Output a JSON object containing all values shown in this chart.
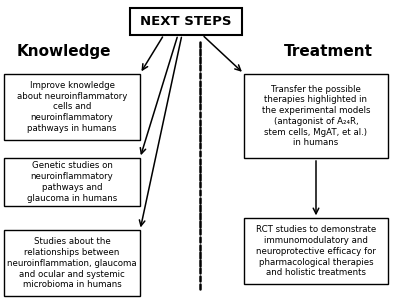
{
  "title": "NEXT STEPS",
  "left_heading": "Knowledge",
  "right_heading": "Treatment",
  "left_boxes": [
    "Improve knowledge\nabout neuroinflammatory\ncells and\nneuroinflammatory\npathways in humans",
    "Genetic studies on\nneuroinflammatory\npathways and\nglaucoma in humans",
    "Studies about the\nrelationships between\nneuroinflammation, glaucoma\nand ocular and systemic\nmicrobioma in humans"
  ],
  "right_boxes": [
    "Transfer the possible\ntherapies highlighted in\nthe experimental models\n(antagonist of A₂₄R,\nstem cells, MgAT, et al.)\nin humans",
    "RCT studies to demonstrate\nimmunomodulatory and\nneuroprotective efficacy for\npharmacological therapies\nand holistic treatments"
  ],
  "bg_color": "#ffffff",
  "box_edge_color": "#000000",
  "text_color": "#000000",
  "arrow_color": "#000000",
  "dotted_line_color": "#000000"
}
